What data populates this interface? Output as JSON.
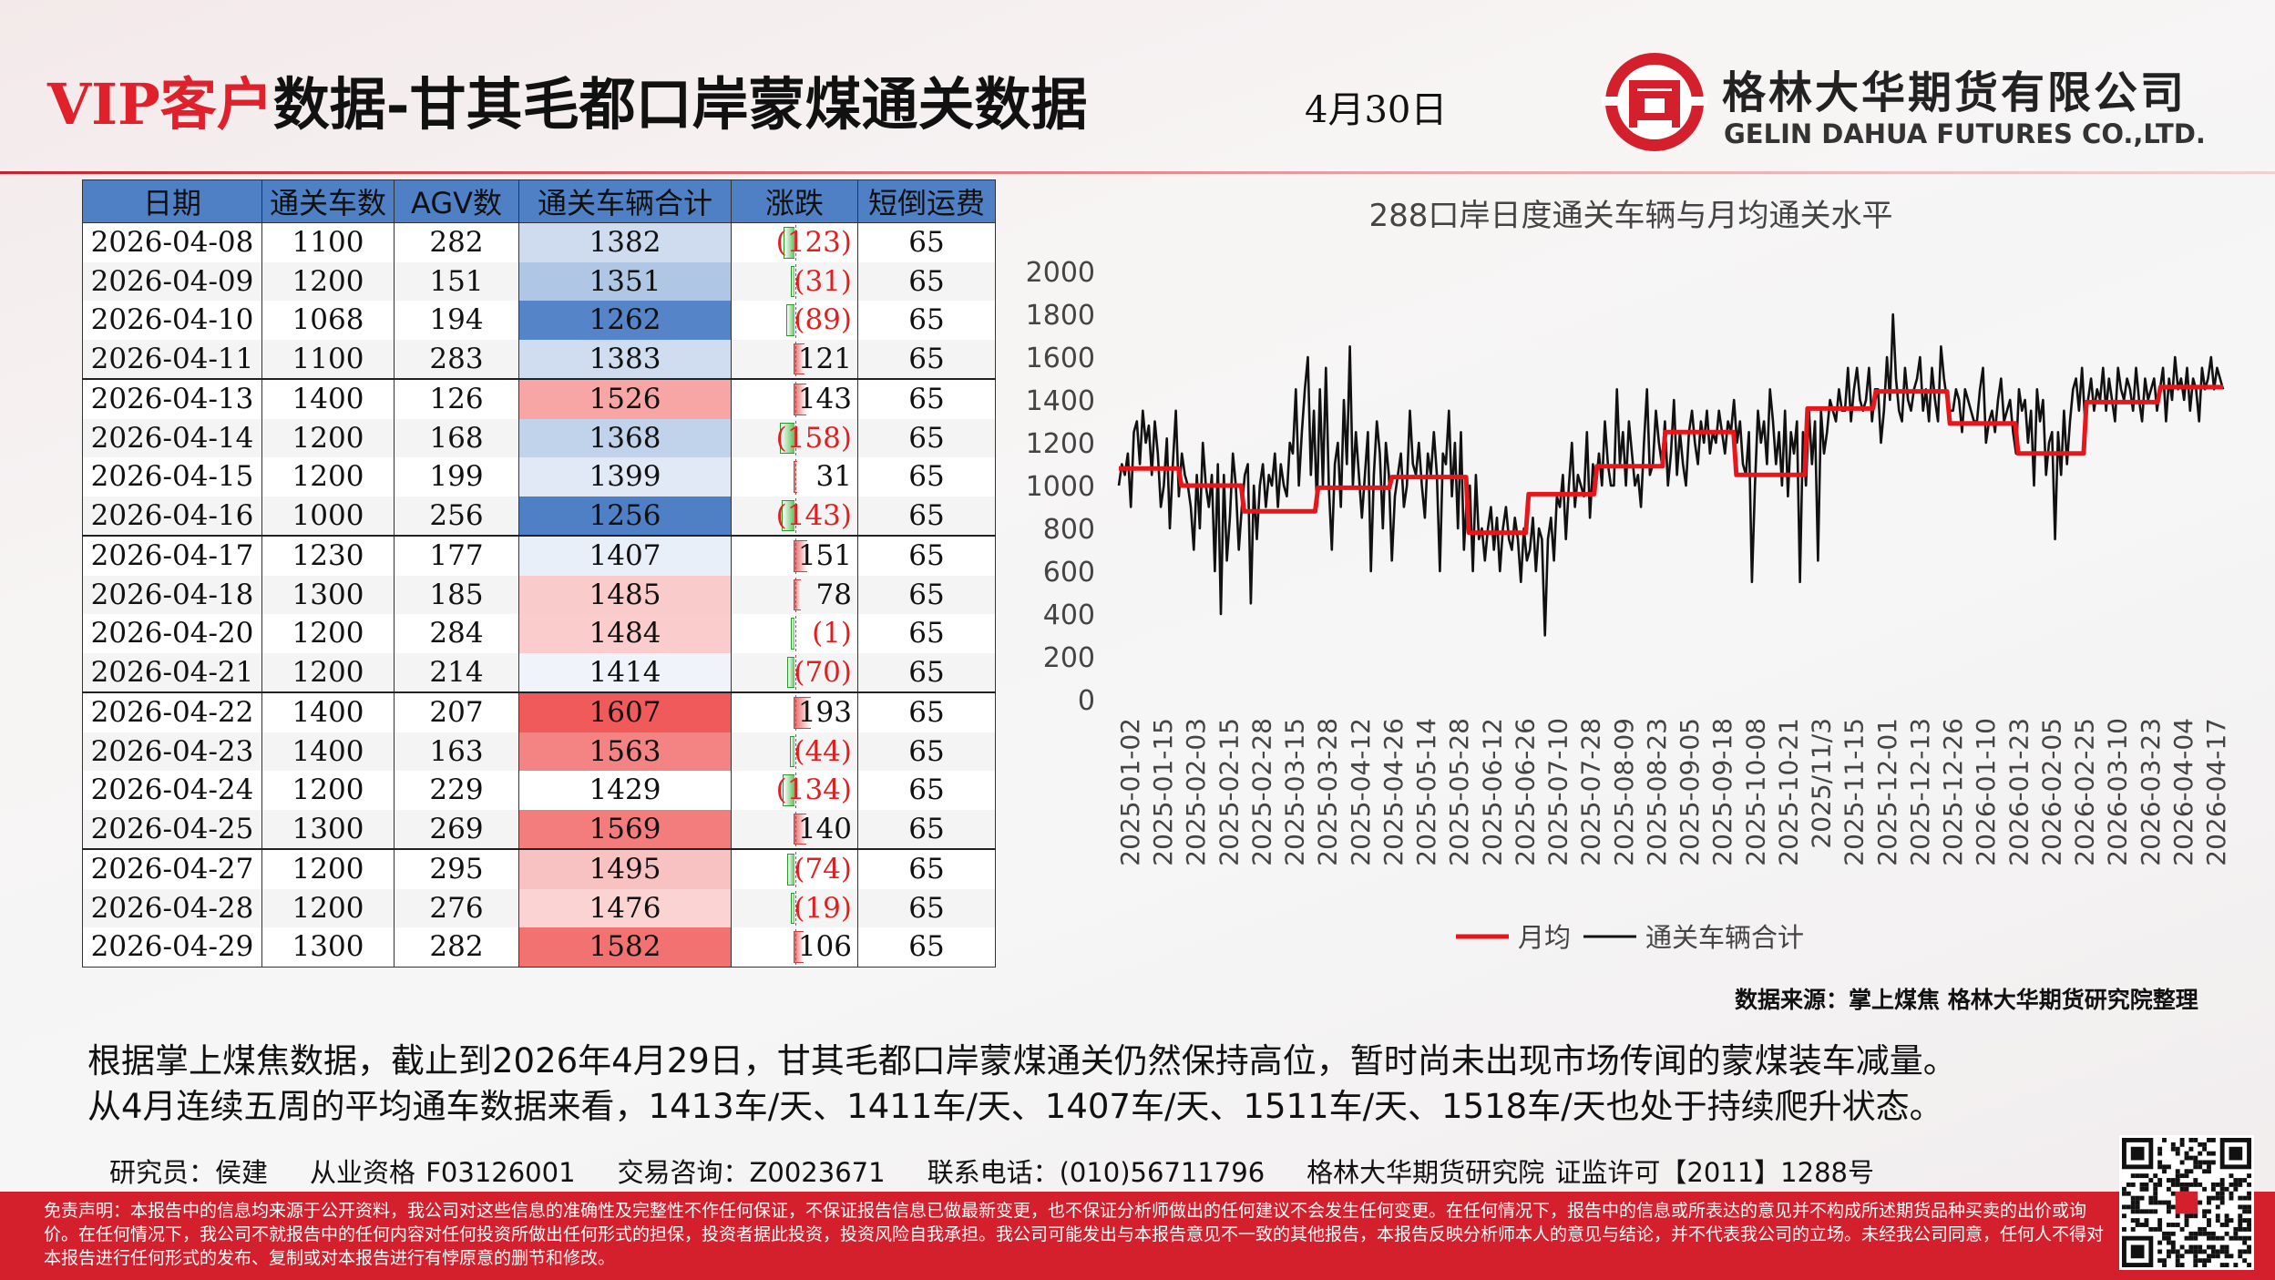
{
  "header": {
    "title_vip": "VIP客户",
    "title_rest": "数据-甘其毛都口岸蒙煤通关数据",
    "date": "4月30日",
    "company_cn": "格林大华期货有限公司",
    "company_en": "GELIN DAHUA FUTURES CO.,LTD.",
    "logo": "gelin-dahua-logo-icon"
  },
  "table": {
    "headers": [
      "日期",
      "通关车数",
      "AGV数",
      "通关车辆合计",
      "涨跌",
      "短倒运费"
    ],
    "rows": [
      {
        "date": "2026-04-08",
        "cars": "1100",
        "agv": "282",
        "total": 1382,
        "change": -123,
        "change_text": "(123)",
        "fee": "65"
      },
      {
        "date": "2026-04-09",
        "cars": "1200",
        "agv": "151",
        "total": 1351,
        "change": -31,
        "change_text": "(31)",
        "fee": "65"
      },
      {
        "date": "2026-04-10",
        "cars": "1068",
        "agv": "194",
        "total": 1262,
        "change": -89,
        "change_text": "(89)",
        "fee": "65"
      },
      {
        "date": "2026-04-11",
        "cars": "1100",
        "agv": "283",
        "total": 1383,
        "change": 121,
        "change_text": "121",
        "fee": "65"
      },
      {
        "date": "2026-04-13",
        "cars": "1400",
        "agv": "126",
        "total": 1526,
        "change": 143,
        "change_text": "143",
        "fee": "65"
      },
      {
        "date": "2026-04-14",
        "cars": "1200",
        "agv": "168",
        "total": 1368,
        "change": -158,
        "change_text": "(158)",
        "fee": "65"
      },
      {
        "date": "2026-04-15",
        "cars": "1200",
        "agv": "199",
        "total": 1399,
        "change": 31,
        "change_text": "31",
        "fee": "65"
      },
      {
        "date": "2026-04-16",
        "cars": "1000",
        "agv": "256",
        "total": 1256,
        "change": -143,
        "change_text": "(143)",
        "fee": "65"
      },
      {
        "date": "2026-04-17",
        "cars": "1230",
        "agv": "177",
        "total": 1407,
        "change": 151,
        "change_text": "151",
        "fee": "65"
      },
      {
        "date": "2026-04-18",
        "cars": "1300",
        "agv": "185",
        "total": 1485,
        "change": 78,
        "change_text": "78",
        "fee": "65"
      },
      {
        "date": "2026-04-20",
        "cars": "1200",
        "agv": "284",
        "total": 1484,
        "change": -1,
        "change_text": "(1)",
        "fee": "65"
      },
      {
        "date": "2026-04-21",
        "cars": "1200",
        "agv": "214",
        "total": 1414,
        "change": -70,
        "change_text": "(70)",
        "fee": "65"
      },
      {
        "date": "2026-04-22",
        "cars": "1400",
        "agv": "207",
        "total": 1607,
        "change": 193,
        "change_text": "193",
        "fee": "65"
      },
      {
        "date": "2026-04-23",
        "cars": "1400",
        "agv": "163",
        "total": 1563,
        "change": -44,
        "change_text": "(44)",
        "fee": "65"
      },
      {
        "date": "2026-04-24",
        "cars": "1200",
        "agv": "229",
        "total": 1429,
        "change": -134,
        "change_text": "(134)",
        "fee": "65"
      },
      {
        "date": "2026-04-25",
        "cars": "1300",
        "agv": "269",
        "total": 1569,
        "change": 140,
        "change_text": "140",
        "fee": "65"
      },
      {
        "date": "2026-04-27",
        "cars": "1200",
        "agv": "295",
        "total": 1495,
        "change": -74,
        "change_text": "(74)",
        "fee": "65"
      },
      {
        "date": "2026-04-28",
        "cars": "1200",
        "agv": "276",
        "total": 1476,
        "change": -19,
        "change_text": "(19)",
        "fee": "65"
      },
      {
        "date": "2026-04-29",
        "cars": "1300",
        "agv": "282",
        "total": 1582,
        "change": 106,
        "change_text": "106",
        "fee": "65"
      }
    ],
    "separator_after_dates": [
      "2026-04-11",
      "2026-04-16",
      "2026-04-21",
      "2026-04-25"
    ],
    "colors": {
      "header": "#4f80c6",
      "scale_low": "#4f80c6",
      "scale_mid": "#ffffff",
      "scale_high": "#f05a5a"
    }
  },
  "chart_data": {
    "type": "line",
    "title": "288口岸日度通关车辆与月均通关水平",
    "ylim": [
      0,
      2000
    ],
    "yticks": [
      0,
      200,
      400,
      600,
      800,
      1000,
      1200,
      1400,
      1600,
      1800,
      2000
    ],
    "xlabels": [
      "2025-01-02",
      "2025-01-15",
      "2025-02-03",
      "2025-02-15",
      "2025-02-28",
      "2025-03-15",
      "2025-03-28",
      "2025-04-12",
      "2025-04-26",
      "2025-05-14",
      "2025-05-28",
      "2025-06-12",
      "2025-06-26",
      "2025-07-10",
      "2025-07-28",
      "2025-08-09",
      "2025-08-23",
      "2025-09-05",
      "2025-09-18",
      "2025-10-08",
      "2025-10-21",
      "2025/11/3",
      "2025-11-15",
      "2025-12-01",
      "2025-12-13",
      "2025-12-26",
      "2026-01-10",
      "2026-01-23",
      "2026-02-05",
      "2026-02-25",
      "2026-03-10",
      "2026-03-23",
      "2026-04-04",
      "2026-04-17"
    ],
    "series": [
      {
        "name": "月均",
        "color": "#e8161b",
        "values": [
          1080,
          1080,
          1080,
          1080,
          1080,
          1080,
          1080,
          1080,
          1080,
          1080,
          1080,
          1080,
          1080,
          1080,
          1080,
          1080,
          1080,
          1080,
          1080,
          1080,
          1080,
          1080,
          1000,
          1000,
          1000,
          1000,
          1000,
          1000,
          1000,
          1000,
          1000,
          1000,
          1000,
          1000,
          1000,
          1000,
          1000,
          1000,
          1000,
          1000,
          1000,
          1000,
          1000,
          1000,
          880,
          880,
          880,
          880,
          880,
          880,
          880,
          880,
          880,
          880,
          880,
          880,
          880,
          880,
          880,
          880,
          880,
          880,
          880,
          880,
          880,
          880,
          880,
          880,
          880,
          880,
          990,
          990,
          990,
          990,
          990,
          990,
          990,
          990,
          990,
          990,
          990,
          990,
          990,
          990,
          990,
          990,
          990,
          990,
          990,
          990,
          990,
          990,
          990,
          990,
          990,
          990,
          1040,
          1040,
          1040,
          1040,
          1040,
          1040,
          1040,
          1040,
          1040,
          1040,
          1040,
          1040,
          1040,
          1040,
          1040,
          1040,
          1040,
          1040,
          1040,
          1040,
          1040,
          1040,
          1040,
          1040,
          1040,
          1040,
          1040,
          780,
          780,
          780,
          780,
          780,
          780,
          780,
          780,
          780,
          780,
          780,
          780,
          780,
          780,
          780,
          780,
          780,
          780,
          780,
          780,
          780,
          960,
          960,
          960,
          960,
          960,
          960,
          960,
          960,
          960,
          960,
          960,
          960,
          960,
          960,
          960,
          960,
          960,
          960,
          960,
          960,
          960,
          960,
          960,
          960,
          1090,
          1090,
          1090,
          1090,
          1090,
          1090,
          1090,
          1090,
          1090,
          1090,
          1090,
          1090,
          1090,
          1090,
          1090,
          1090,
          1090,
          1090,
          1090,
          1090,
          1090,
          1090,
          1090,
          1090,
          1250,
          1250,
          1250,
          1250,
          1250,
          1250,
          1250,
          1250,
          1250,
          1250,
          1250,
          1250,
          1250,
          1250,
          1250,
          1250,
          1250,
          1250,
          1250,
          1250,
          1250,
          1250,
          1250,
          1250,
          1250,
          1050,
          1050,
          1050,
          1050,
          1050,
          1050,
          1050,
          1050,
          1050,
          1050,
          1050,
          1050,
          1050,
          1050,
          1050,
          1050,
          1050,
          1050,
          1050,
          1050,
          1050,
          1050,
          1050,
          1050,
          1050,
          1360,
          1360,
          1360,
          1360,
          1360,
          1360,
          1360,
          1360,
          1360,
          1360,
          1360,
          1360,
          1360,
          1360,
          1360,
          1360,
          1360,
          1360,
          1360,
          1360,
          1360,
          1360,
          1360,
          1360,
          1440,
          1440,
          1440,
          1440,
          1440,
          1440,
          1440,
          1440,
          1440,
          1440,
          1440,
          1440,
          1440,
          1440,
          1440,
          1440,
          1440,
          1440,
          1440,
          1440,
          1440,
          1440,
          1440,
          1440,
          1440,
          1440,
          1290,
          1290,
          1290,
          1290,
          1290,
          1290,
          1290,
          1290,
          1290,
          1290,
          1290,
          1290,
          1290,
          1290,
          1290,
          1290,
          1290,
          1290,
          1290,
          1290,
          1290,
          1290,
          1290,
          1290,
          1150,
          1150,
          1150,
          1150,
          1150,
          1150,
          1150,
          1150,
          1150,
          1150,
          1150,
          1150,
          1150,
          1150,
          1150,
          1150,
          1150,
          1150,
          1150,
          1150,
          1150,
          1150,
          1150,
          1150,
          1390,
          1390,
          1390,
          1390,
          1390,
          1390,
          1390,
          1390,
          1390,
          1390,
          1390,
          1390,
          1390,
          1390,
          1390,
          1390,
          1390,
          1390,
          1390,
          1390,
          1390,
          1390,
          1390,
          1390,
          1390,
          1390,
          1460,
          1460,
          1460,
          1460,
          1460,
          1460,
          1460,
          1460,
          1460,
          1460,
          1460,
          1460,
          1460,
          1460,
          1460,
          1460,
          1460,
          1460,
          1460,
          1460,
          1460,
          1460,
          1460
        ]
      },
      {
        "name": "通关车辆合计",
        "color": "#111111",
        "values": [
          1000,
          1100,
          1050,
          1150,
          900,
          1250,
          1300,
          1100,
          1350,
          1200,
          1280,
          1050,
          1300,
          1150,
          900,
          1000,
          1220,
          800,
          1100,
          1350,
          950,
          1150,
          1050,
          1000,
          900,
          700,
          1050,
          800,
          1200,
          1000,
          900,
          1050,
          600,
          1100,
          400,
          1050,
          650,
          850,
          1150,
          1000,
          700,
          900,
          1050,
          1100,
          450,
          1000,
          750,
          1000,
          1100,
          900,
          1050,
          1000,
          1150,
          900,
          1100,
          1000,
          950,
          1200,
          1150,
          1450,
          1000,
          1250,
          1450,
          1600,
          1050,
          1350,
          900,
          1450,
          1000,
          1550,
          1000,
          700,
          1100,
          1200,
          900,
          1400,
          1100,
          1650,
          1000,
          1250,
          1050,
          850,
          1050,
          1250,
          600,
          1050,
          1300,
          1150,
          800,
          1200,
          1050,
          650,
          950,
          1050,
          1150,
          900,
          1000,
          1350,
          1100,
          1050,
          1200,
          1000,
          850,
          1150,
          1050,
          1250,
          1050,
          600,
          1150,
          1100,
          1350,
          950,
          1200,
          800,
          1250,
          700,
          950,
          1000,
          600,
          1050,
          750,
          800,
          650,
          800,
          900,
          700,
          850,
          600,
          800,
          900,
          750,
          700,
          850,
          750,
          550,
          800,
          650,
          700,
          850,
          600,
          800,
          750,
          300,
          750,
          850,
          650,
          950,
          900,
          1050,
          750,
          1000,
          1200,
          900,
          1050,
          1000,
          950,
          1250,
          850,
          1100,
          1000,
          1150,
          1000,
          1300,
          1100,
          1000,
          1000,
          1450,
          1100,
          1250,
          1000,
          1300,
          1150,
          1000,
          1050,
          900,
          1200,
          1450,
          1050,
          1100,
          1350,
          1200,
          1100,
          1300,
          1000,
          1150,
          1400,
          1050,
          1250,
          1100,
          1000,
          1250,
          1350,
          1200,
          1100,
          1300,
          1200,
          1350,
          1150,
          1250,
          1200,
          1350,
          1250,
          1150,
          1300,
          1250,
          1400,
          1200,
          1300,
          1100,
          1050,
          1250,
          550,
          1000,
          1350,
          1200,
          1300,
          1100,
          1450,
          1300,
          1100,
          1250,
          1000,
          1350,
          950,
          1250,
          1150,
          1300,
          550,
          1250,
          1000,
          1350,
          1100,
          1300,
          650,
          1350,
          1150,
          1250,
          1400,
          1350,
          1300,
          1450,
          1350,
          1350,
          1550,
          1300,
          1450,
          1550,
          1400,
          1350,
          1400,
          1550,
          1300,
          1450,
          1450,
          1200,
          1350,
          1600,
          1400,
          1800,
          1500,
          1350,
          1300,
          1550,
          1400,
          1350,
          1450,
          1500,
          1600,
          1350,
          1450,
          1300,
          1550,
          1400,
          1300,
          1650,
          1500,
          1400,
          1350,
          1350,
          1450,
          1400,
          1250,
          1450,
          1400,
          1350,
          1300,
          1300,
          1450,
          1550,
          1200,
          1300,
          1350,
          1250,
          1400,
          1500,
          1300,
          1350,
          1400,
          1250,
          1150,
          1450,
          1350,
          1400,
          1200,
          1350,
          1000,
          1450,
          1300,
          1400,
          1050,
          1200,
          1250,
          750,
          1250,
          1050,
          1350,
          1100,
          1300,
          1450,
          1500,
          1350,
          1550,
          1300,
          1400,
          1500,
          1350,
          1450,
          1400,
          1550,
          1350,
          1500,
          1400,
          1300,
          1550,
          1450,
          1400,
          1500,
          1450,
          1350,
          1550,
          1400,
          1300,
          1500,
          1400,
          1450,
          1500,
          1350,
          1450,
          1550,
          1300,
          1500,
          1400,
          1600,
          1450,
          1500,
          1400,
          1550,
          1350,
          1500,
          1450,
          1300,
          1550,
          1450,
          1500,
          1600,
          1450,
          1550,
          1500,
          1450
        ]
      }
    ],
    "legend": "bottom"
  },
  "source": "数据来源：掌上煤焦 格林大华期货研究院整理",
  "summary": [
    "根据掌上煤焦数据，截止到2026年4月29日，甘其毛都口岸蒙煤通关仍然保持高位，暂时尚未出现市场传闻的蒙煤装车减量。",
    "从4月连续五周的平均通车数据来看，1413车/天、1411车/天、1407车/天、1511车/天、1518车/天也处于持续爬升状态。"
  ],
  "contact": {
    "researcher": "研究员：侯建",
    "license": "从业资格 F03126001",
    "consult": "交易咨询：Z0023671",
    "phone": "联系电话：(010)56711796",
    "institute": "格林大华期货研究院 证监许可【2011】1288号"
  },
  "disclaimer": "免责声明：本报告中的信息均来源于公开资料，我公司对这些信息的准确性及完整性不作任何保证，不保证报告信息已做最新变更，也不保证分析师做出的任何建议不会发生任何变更。在任何情况下，报告中的信息或所表达的意见并不构成所述期货品种买卖的出价或询价。在任何情况下，我公司不就报告中的任何内容对任何投资所做出任何形式的担保，投资者据此投资，投资风险自我承担。我公司可能发出与本报告意见不一致的其他报告，本报告反映分析师本人的意见与结论，并不代表我公司的立场。未经我公司同意，任何人不得对本报告进行任何形式的发布、复制或对本报告进行有悖原意的删节和修改。",
  "qr": "qr-code-icon"
}
